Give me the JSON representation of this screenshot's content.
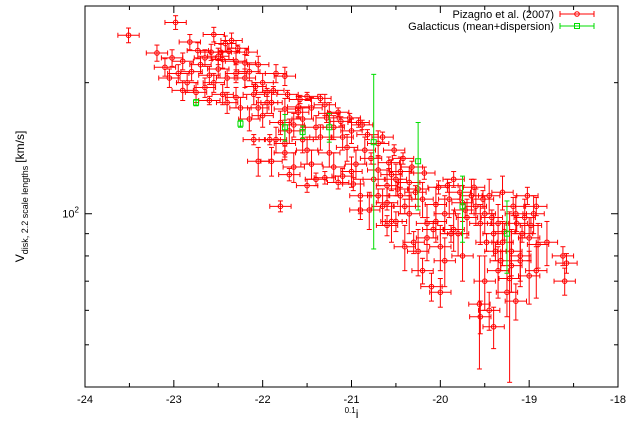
{
  "chart_data": {
    "type": "scatter",
    "xlabel_sup": "0.1",
    "xlabel_main": "i",
    "ylabel_main": "V",
    "ylabel_sub": "disk, 2.2 scale lengths",
    "ylabel_unit": "[km/s]",
    "xlim": [
      -24,
      -18
    ],
    "ylim": [
      40,
      300
    ],
    "yscale": "log",
    "x_ticks": [
      -24,
      -23,
      -22,
      -21,
      -20,
      -19,
      -18
    ],
    "x_tick_labels": [
      "-24",
      "-23",
      "-22",
      "-21",
      "-20",
      "-19",
      "-18"
    ],
    "y_tick_label_base": "10",
    "y_tick_label_exp": "2",
    "y_tick_value": 100,
    "legend_position": "top-right",
    "series": [
      {
        "name": "Pizagno et al. (2007)",
        "color": "#ff0000",
        "marker": "circle",
        "x_error": 0.12,
        "points": [
          [
            -23.51,
            257,
            10
          ],
          [
            -22.98,
            275,
            10
          ],
          [
            -22.82,
            248,
            10
          ],
          [
            -22.55,
            258,
            10
          ],
          [
            -22.42,
            246,
            10
          ],
          [
            -22.35,
            250,
            10
          ],
          [
            -22.38,
            236,
            10
          ],
          [
            -23.02,
            228,
            10
          ],
          [
            -23.19,
            234,
            10
          ],
          [
            -22.73,
            237,
            10
          ],
          [
            -22.58,
            235,
            10
          ],
          [
            -22.5,
            230,
            10
          ],
          [
            -22.45,
            226,
            10
          ],
          [
            -22.3,
            224,
            10
          ],
          [
            -22.2,
            222,
            10
          ],
          [
            -22.05,
            220,
            10
          ],
          [
            -22.47,
            235,
            10
          ],
          [
            -22.65,
            228,
            10
          ],
          [
            -22.7,
            220,
            10
          ],
          [
            -22.9,
            224,
            10
          ],
          [
            -23.1,
            217,
            10
          ],
          [
            -22.95,
            210,
            10
          ],
          [
            -22.8,
            212,
            10
          ],
          [
            -22.6,
            208,
            10
          ],
          [
            -22.5,
            215,
            10
          ],
          [
            -22.4,
            205,
            10
          ],
          [
            -22.3,
            210,
            10
          ],
          [
            -22.2,
            205,
            10
          ],
          [
            -22.15,
            212,
            10
          ],
          [
            -22.0,
            200,
            10
          ],
          [
            -21.85,
            210,
            10
          ],
          [
            -21.75,
            207,
            10
          ],
          [
            -22.55,
            200,
            10
          ],
          [
            -22.65,
            195,
            10
          ],
          [
            -22.85,
            200,
            10
          ],
          [
            -23.05,
            205,
            10
          ],
          [
            -22.9,
            192,
            10
          ],
          [
            -22.75,
            190,
            10
          ],
          [
            -22.45,
            188,
            10
          ],
          [
            -22.3,
            185,
            10
          ],
          [
            -22.1,
            188,
            10
          ],
          [
            -21.95,
            180,
            10
          ],
          [
            -22.4,
            180,
            10
          ],
          [
            -22.25,
            175,
            10
          ],
          [
            -22.05,
            175,
            10
          ],
          [
            -21.9,
            180,
            10
          ],
          [
            -21.75,
            174,
            10
          ],
          [
            -21.6,
            176,
            10
          ],
          [
            -21.45,
            175,
            10
          ],
          [
            -21.3,
            178,
            10
          ],
          [
            -21.25,
            170,
            10
          ],
          [
            -21.55,
            165,
            10
          ],
          [
            -21.65,
            160,
            10
          ],
          [
            -21.8,
            162,
            10
          ],
          [
            -22.0,
            168,
            10
          ],
          [
            -22.15,
            165,
            10
          ],
          [
            -21.7,
            155,
            10
          ],
          [
            -21.4,
            158,
            10
          ],
          [
            -21.2,
            158,
            10
          ],
          [
            -21.0,
            155,
            10
          ],
          [
            -21.1,
            150,
            10
          ],
          [
            -21.35,
            150,
            10
          ],
          [
            -21.55,
            148,
            10
          ],
          [
            -21.75,
            145,
            10
          ],
          [
            -21.85,
            148,
            10
          ],
          [
            -21.5,
            140,
            10
          ],
          [
            -21.25,
            138,
            10
          ],
          [
            -21.05,
            142,
            10
          ],
          [
            -20.85,
            140,
            10
          ],
          [
            -20.7,
            145,
            10
          ],
          [
            -20.95,
            130,
            10
          ],
          [
            -21.45,
            130,
            10
          ],
          [
            -21.9,
            132,
            10
          ],
          [
            -22.05,
            132,
            10
          ],
          [
            -21.65,
            128,
            10
          ],
          [
            -21.2,
            128,
            10
          ],
          [
            -21.0,
            125,
            10
          ],
          [
            -20.7,
            126,
            10
          ],
          [
            -20.55,
            123,
            10
          ],
          [
            -20.45,
            125,
            10
          ],
          [
            -20.5,
            120,
            10
          ],
          [
            -20.75,
            120,
            10
          ],
          [
            -20.6,
            116,
            10
          ],
          [
            -20.45,
            110,
            10
          ],
          [
            -20.35,
            118,
            10
          ],
          [
            -20.25,
            114,
            10
          ],
          [
            -20.2,
            108,
            10
          ],
          [
            -20.05,
            105,
            10
          ],
          [
            -19.9,
            108,
            10
          ],
          [
            -19.75,
            106,
            10
          ],
          [
            -19.65,
            110,
            10
          ],
          [
            -19.45,
            110,
            10
          ],
          [
            -19.3,
            112,
            10
          ],
          [
            -19.15,
            100,
            10
          ],
          [
            -19.05,
            98,
            10
          ],
          [
            -18.95,
            100,
            10
          ],
          [
            -20.9,
            110,
            10
          ],
          [
            -20.8,
            102,
            10
          ],
          [
            -20.65,
            104,
            10
          ],
          [
            -20.55,
            96,
            10
          ],
          [
            -20.35,
            100,
            10
          ],
          [
            -20.15,
            95,
            10
          ],
          [
            -20.05,
            96,
            10
          ],
          [
            -19.95,
            100,
            10
          ],
          [
            -19.85,
            92,
            10
          ],
          [
            -19.7,
            98,
            10
          ],
          [
            -19.55,
            95,
            10
          ],
          [
            -19.4,
            90,
            10
          ],
          [
            -19.3,
            86,
            10
          ],
          [
            -19.2,
            82,
            10
          ],
          [
            -19.1,
            80,
            10
          ],
          [
            -19.0,
            88,
            10
          ],
          [
            -18.9,
            85,
            10
          ],
          [
            -18.8,
            86,
            10
          ],
          [
            -19.35,
            95,
            10
          ],
          [
            -19.5,
            100,
            10
          ],
          [
            -19.6,
            104,
            10
          ],
          [
            -19.8,
            90,
            10
          ],
          [
            -20.0,
            84,
            10
          ],
          [
            -20.25,
            82,
            10
          ],
          [
            -20.4,
            84,
            10
          ],
          [
            -20.15,
            88,
            10
          ],
          [
            -19.95,
            78,
            10
          ],
          [
            -19.75,
            80,
            10
          ],
          [
            -19.5,
            70,
            10
          ],
          [
            -19.35,
            74,
            10
          ],
          [
            -19.2,
            76,
            10
          ],
          [
            -19.1,
            78,
            10
          ],
          [
            -19.0,
            72,
            10
          ],
          [
            -18.92,
            74,
            10
          ],
          [
            -18.62,
            80,
            4
          ],
          [
            -18.58,
            77,
            4
          ],
          [
            -18.6,
            70,
            5
          ],
          [
            -19.25,
            66,
            8
          ],
          [
            -19.15,
            63,
            6
          ],
          [
            -19.4,
            55,
            6
          ],
          [
            -19.45,
            60,
            6
          ],
          [
            -19.55,
            58,
            5
          ],
          [
            -20.0,
            66,
            5
          ],
          [
            -20.1,
            68,
            5
          ],
          [
            -20.2,
            74,
            5
          ],
          [
            -20.3,
            86,
            5
          ],
          [
            -20.5,
            96,
            5
          ],
          [
            -20.6,
            94,
            5
          ],
          [
            -21.8,
            104,
            3
          ],
          [
            -20.9,
            102,
            5
          ],
          [
            -21.1,
            122,
            5
          ],
          [
            -21.75,
            138,
            5
          ],
          [
            -22.1,
            148,
            4
          ],
          [
            -21.92,
            148,
            4
          ],
          [
            -21.5,
            116,
            4
          ],
          [
            -21.7,
            123,
            4
          ],
          [
            -21.4,
            120,
            4
          ],
          [
            -21.3,
            121,
            4
          ],
          [
            -21.15,
            118,
            4
          ],
          [
            -20.98,
            117,
            4
          ],
          [
            -20.7,
            110,
            4
          ],
          [
            -20.6,
            106,
            4
          ],
          [
            -20.4,
            104,
            4
          ],
          [
            -19.85,
            120,
            5
          ],
          [
            -19.62,
            115,
            5
          ],
          [
            -19.52,
            108,
            5
          ],
          [
            -19.18,
            104,
            5
          ],
          [
            -19.02,
            110,
            5
          ],
          [
            -18.92,
            104,
            5
          ],
          [
            -19.22,
            71,
            30
          ],
          [
            -19.56,
            62,
            18
          ],
          [
            -22.6,
            182,
            4
          ],
          [
            -21.5,
            186,
            4
          ],
          [
            -21.95,
            190,
            4
          ],
          [
            -21.28,
            166,
            4
          ],
          [
            -21.12,
            163,
            4
          ],
          [
            -20.92,
            162,
            4
          ],
          [
            -20.82,
            152,
            4
          ],
          [
            -20.65,
            150,
            4
          ],
          [
            -20.52,
            140,
            4
          ],
          [
            -20.42,
            134,
            4
          ],
          [
            -20.32,
            128,
            4
          ],
          [
            -20.18,
            124,
            4
          ],
          [
            -20.02,
            115,
            4
          ],
          [
            -19.92,
            116,
            4
          ],
          [
            -19.78,
            112,
            4
          ],
          [
            -19.72,
            102,
            4
          ],
          [
            -19.42,
            98,
            4
          ],
          [
            -19.28,
            91,
            4
          ],
          [
            -19.14,
            95,
            4
          ],
          [
            -19.08,
            90,
            4
          ],
          [
            -18.98,
            94,
            4
          ],
          [
            -21.6,
            171,
            4
          ],
          [
            -21.35,
            184,
            4
          ],
          [
            -21.15,
            171,
            4
          ],
          [
            -21.02,
            166,
            4
          ],
          [
            -20.88,
            160,
            4
          ],
          [
            -20.78,
            134,
            4
          ],
          [
            -20.58,
            131,
            4
          ],
          [
            -20.48,
            114,
            4
          ],
          [
            -20.28,
            112,
            4
          ],
          [
            -20.08,
            92,
            4
          ],
          [
            -19.88,
            90,
            4
          ],
          [
            -19.48,
            86,
            4
          ],
          [
            -19.38,
            82,
            4
          ],
          [
            -19.32,
            78,
            4
          ],
          [
            -22.18,
            235,
            4
          ],
          [
            -22.28,
            240,
            4
          ],
          [
            -22.08,
            196,
            4
          ],
          [
            -21.88,
            192,
            4
          ],
          [
            -21.72,
            188,
            4
          ],
          [
            -21.58,
            183,
            4
          ]
        ]
      },
      {
        "name": "Galacticus (mean+dispersion)",
        "color": "#00dd00",
        "marker": "square",
        "x_error": 0,
        "points": [
          [
            -22.75,
            180,
            3
          ],
          [
            -22.25,
            161,
            3
          ],
          [
            -21.75,
            158,
            11
          ],
          [
            -21.55,
            154,
            5
          ],
          [
            -21.25,
            158,
            12
          ],
          [
            -20.75,
            146,
            63
          ],
          [
            -20.25,
            132,
            30
          ],
          [
            -19.75,
            104,
            18
          ],
          [
            -19.25,
            90,
            17
          ]
        ]
      }
    ]
  }
}
